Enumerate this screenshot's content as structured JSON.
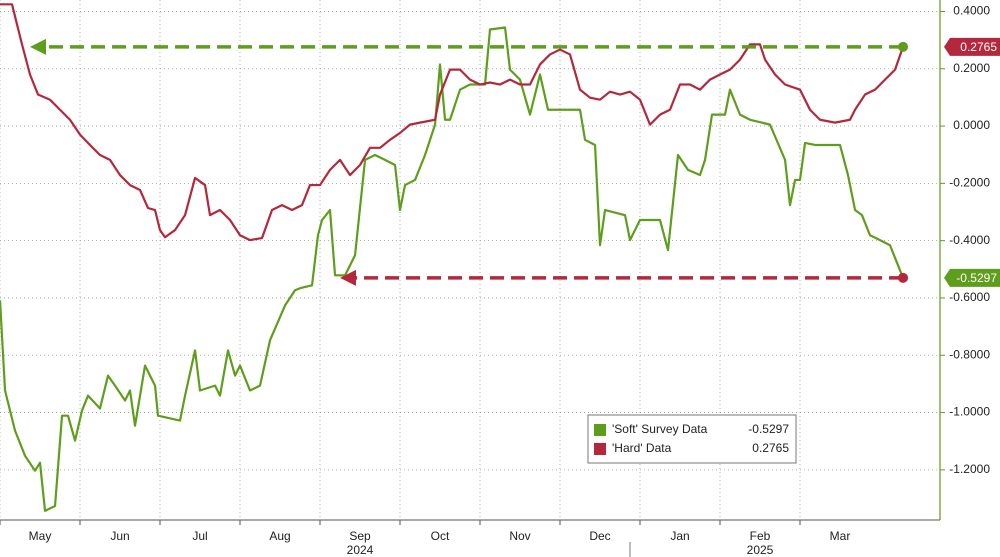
{
  "chart_data": {
    "type": "line",
    "xlim": [
      0,
      11.75
    ],
    "ylim": [
      -1.375,
      0.44
    ],
    "xticks": [
      {
        "value": 0.5,
        "label": "May"
      },
      {
        "value": 1.5,
        "label": "Jun"
      },
      {
        "value": 2.5,
        "label": "Jul"
      },
      {
        "value": 3.5,
        "label": "Aug"
      },
      {
        "value": 4.5,
        "label": "Sep"
      },
      {
        "value": 5.5,
        "label": "Oct"
      },
      {
        "value": 6.5,
        "label": "Nov"
      },
      {
        "value": 7.5,
        "label": "Dec"
      },
      {
        "value": 8.5,
        "label": "Jan"
      },
      {
        "value": 9.5,
        "label": "Feb"
      },
      {
        "value": 10.5,
        "label": "Mar"
      }
    ],
    "x_years": [
      {
        "value": 4.5,
        "label": "2024"
      },
      {
        "value": 9.5,
        "label": "2025"
      }
    ],
    "yticks": [
      {
        "value": 0.4,
        "label": "0.4000"
      },
      {
        "value": 0.2,
        "label": "0.2000"
      },
      {
        "value": 0,
        "label": "0.0000"
      },
      {
        "value": -0.2,
        "label": "-0.2000"
      },
      {
        "value": -0.4,
        "label": "-0.4000"
      },
      {
        "value": -0.6,
        "label": "-0.6000"
      },
      {
        "value": -0.8,
        "label": "-0.8000"
      },
      {
        "value": -1.0,
        "label": "-1.0000"
      },
      {
        "value": -1.2,
        "label": "-1.2000"
      }
    ],
    "grid": true,
    "series": [
      {
        "name": "'Soft' Survey Data",
        "color": "#5e9e1c",
        "x": [
          0,
          0.063,
          0.188,
          0.313,
          0.438,
          0.5,
          0.563,
          0.688,
          0.775,
          0.85,
          0.938,
          1.025,
          1.1,
          1.25,
          1.35,
          1.438,
          1.563,
          1.625,
          1.688,
          1.813,
          1.938,
          1.975,
          2.25,
          2.313,
          2.438,
          2.5,
          2.688,
          2.75,
          2.85,
          2.938,
          3.0,
          3.125,
          3.25,
          3.375,
          3.563,
          3.688,
          3.75,
          3.9,
          3.975,
          4.025,
          4.125,
          4.188,
          4.313,
          4.438,
          4.563,
          4.688,
          4.813,
          4.938,
          5.0,
          5.063,
          5.188,
          5.313,
          5.438,
          5.5,
          5.563,
          5.625,
          5.75,
          5.875,
          6.063,
          6.125,
          6.313,
          6.375,
          6.5,
          6.625,
          6.75,
          6.85,
          6.938,
          7.25,
          7.313,
          7.438,
          7.5,
          7.563,
          7.813,
          7.875,
          8.0,
          8.25,
          8.35,
          8.475,
          8.6,
          8.75,
          8.813,
          8.9,
          9.063,
          9.125,
          9.25,
          9.375,
          9.625,
          9.813,
          9.875,
          9.938,
          10.0,
          10.063,
          10.188,
          10.5,
          10.6,
          10.688,
          10.775,
          10.875,
          11.0,
          11.125,
          11.288
        ],
        "values": [
          -0.608,
          -0.923,
          -1.063,
          -1.151,
          -1.203,
          -1.175,
          -1.343,
          -1.326,
          -1.011,
          -1.011,
          -1.098,
          -0.993,
          -0.941,
          -0.986,
          -0.871,
          -0.906,
          -0.958,
          -0.923,
          -1.046,
          -0.836,
          -0.906,
          -1.011,
          -1.028,
          -0.941,
          -0.783,
          -0.923,
          -0.906,
          -0.941,
          -0.783,
          -0.871,
          -0.836,
          -0.923,
          -0.906,
          -0.748,
          -0.626,
          -0.573,
          -0.566,
          -0.556,
          -0.381,
          -0.328,
          -0.293,
          -0.521,
          -0.521,
          -0.451,
          -0.118,
          -0.101,
          -0.118,
          -0.136,
          -0.293,
          -0.206,
          -0.188,
          -0.101,
          0.005,
          0.215,
          0.022,
          0.022,
          0.127,
          0.145,
          0.145,
          0.337,
          0.344,
          0.197,
          0.162,
          0.04,
          0.18,
          0.057,
          0.057,
          0.057,
          -0.048,
          -0.066,
          -0.416,
          -0.293,
          -0.311,
          -0.398,
          -0.328,
          -0.328,
          -0.433,
          -0.101,
          -0.153,
          -0.171,
          -0.118,
          0.04,
          0.04,
          0.127,
          0.04,
          0.022,
          0.005,
          -0.118,
          -0.276,
          -0.188,
          -0.188,
          -0.059,
          -0.066,
          -0.066,
          -0.171,
          -0.293,
          -0.311,
          -0.381,
          -0.398,
          -0.416,
          -0.5297
        ]
      },
      {
        "name": "'Hard' Data",
        "color": "#b3283c",
        "x": [
          0,
          0.15,
          0.275,
          0.375,
          0.475,
          0.625,
          0.75,
          0.875,
          1.0,
          1.125,
          1.25,
          1.375,
          1.5,
          1.625,
          1.75,
          1.85,
          1.938,
          2.0,
          2.063,
          2.188,
          2.313,
          2.438,
          2.563,
          2.625,
          2.75,
          2.875,
          3.0,
          3.125,
          3.275,
          3.4,
          3.525,
          3.65,
          3.775,
          3.875,
          4.0,
          4.125,
          4.25,
          4.375,
          4.5,
          4.625,
          4.75,
          4.875,
          5.0,
          5.125,
          5.25,
          5.438,
          5.5,
          5.625,
          5.75,
          5.875,
          6.0,
          6.125,
          6.25,
          6.375,
          6.5,
          6.625,
          6.75,
          6.875,
          7.0,
          7.125,
          7.25,
          7.375,
          7.5,
          7.625,
          7.75,
          7.875,
          8.0,
          8.125,
          8.25,
          8.375,
          8.5,
          8.625,
          8.75,
          8.875,
          9.0,
          9.125,
          9.25,
          9.375,
          9.5,
          9.563,
          9.688,
          9.813,
          10.0,
          10.125,
          10.25,
          10.438,
          10.625,
          10.688,
          10.813,
          10.938,
          11.063,
          11.188,
          11.288
        ],
        "values": [
          0.425,
          0.425,
          0.285,
          0.18,
          0.11,
          0.092,
          0.057,
          0.022,
          -0.03,
          -0.066,
          -0.101,
          -0.118,
          -0.171,
          -0.206,
          -0.223,
          -0.286,
          -0.293,
          -0.363,
          -0.388,
          -0.363,
          -0.311,
          -0.181,
          -0.206,
          -0.311,
          -0.293,
          -0.328,
          -0.381,
          -0.398,
          -0.391,
          -0.293,
          -0.276,
          -0.293,
          -0.276,
          -0.206,
          -0.206,
          -0.153,
          -0.118,
          -0.171,
          -0.136,
          -0.076,
          -0.076,
          -0.048,
          -0.024,
          0.005,
          0.012,
          0.022,
          0.11,
          0.197,
          0.197,
          0.162,
          0.145,
          0.152,
          0.145,
          0.162,
          0.145,
          0.145,
          0.215,
          0.25,
          0.267,
          0.25,
          0.127,
          0.099,
          0.092,
          0.12,
          0.11,
          0.12,
          0.092,
          0.005,
          0.04,
          0.057,
          0.145,
          0.145,
          0.127,
          0.162,
          0.18,
          0.197,
          0.232,
          0.285,
          0.285,
          0.232,
          0.18,
          0.145,
          0.127,
          0.057,
          0.022,
          0.012,
          0.022,
          0.057,
          0.11,
          0.127,
          0.162,
          0.197,
          0.2765
        ]
      }
    ]
  }
}
